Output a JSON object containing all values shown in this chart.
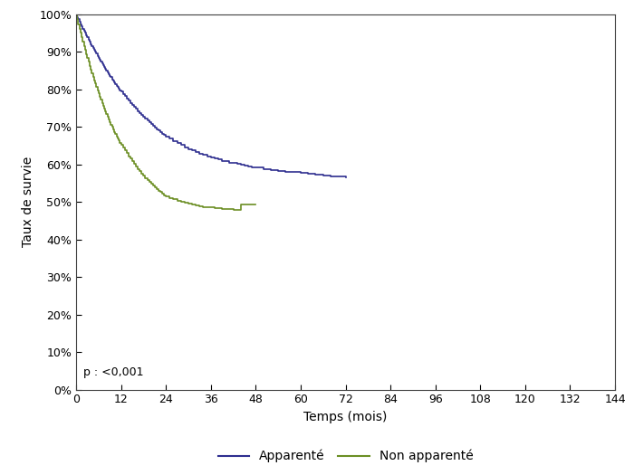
{
  "title": "",
  "xlabel": "Temps (mois)",
  "ylabel": "Taux de survie",
  "xlim": [
    0,
    144
  ],
  "ylim": [
    0,
    1.0
  ],
  "xticks": [
    0,
    12,
    24,
    36,
    48,
    60,
    72,
    84,
    96,
    108,
    120,
    132,
    144
  ],
  "yticks": [
    0.0,
    0.1,
    0.2,
    0.3,
    0.4,
    0.5,
    0.6,
    0.7,
    0.8,
    0.9,
    1.0
  ],
  "pvalue_text": "p : <0,001",
  "legend_labels": [
    "Apparenté",
    "Non apparenté"
  ],
  "color_apparente": "#2e2e8f",
  "color_non_apparente": "#6b8e23",
  "apparente_times": [
    0,
    0.3,
    0.6,
    0.9,
    1.2,
    1.5,
    1.8,
    2.1,
    2.4,
    2.7,
    3.0,
    3.3,
    3.6,
    3.9,
    4.2,
    4.5,
    4.8,
    5.1,
    5.4,
    5.7,
    6.0,
    6.3,
    6.6,
    6.9,
    7.2,
    7.5,
    7.8,
    8.1,
    8.4,
    8.7,
    9.0,
    9.3,
    9.6,
    9.9,
    10.2,
    10.5,
    10.8,
    11.1,
    11.4,
    11.7,
    12.0,
    12.5,
    13.0,
    13.5,
    14.0,
    14.5,
    15.0,
    15.5,
    16.0,
    16.5,
    17.0,
    17.5,
    18.0,
    18.5,
    19.0,
    19.5,
    20.0,
    20.5,
    21.0,
    21.5,
    22.0,
    22.5,
    23.0,
    23.5,
    24.0,
    25.0,
    26.0,
    27.0,
    28.0,
    29.0,
    30.0,
    31.0,
    32.0,
    33.0,
    34.0,
    35.0,
    36.0,
    37.0,
    38.0,
    39.0,
    40.0,
    41.0,
    42.0,
    43.0,
    44.0,
    45.0,
    46.0,
    47.0,
    48.0,
    50.0,
    52.0,
    54.0,
    56.0,
    58.0,
    60.0,
    62.0,
    64.0,
    66.0,
    68.0,
    70.0,
    72.0
  ],
  "apparente_surv": [
    1.0,
    0.993,
    0.987,
    0.98,
    0.974,
    0.968,
    0.962,
    0.956,
    0.95,
    0.944,
    0.938,
    0.933,
    0.927,
    0.921,
    0.916,
    0.911,
    0.905,
    0.9,
    0.895,
    0.889,
    0.884,
    0.879,
    0.874,
    0.869,
    0.864,
    0.859,
    0.855,
    0.85,
    0.845,
    0.841,
    0.836,
    0.832,
    0.827,
    0.823,
    0.818,
    0.814,
    0.81,
    0.806,
    0.802,
    0.798,
    0.794,
    0.788,
    0.782,
    0.776,
    0.77,
    0.764,
    0.759,
    0.753,
    0.748,
    0.742,
    0.737,
    0.732,
    0.727,
    0.722,
    0.717,
    0.712,
    0.707,
    0.703,
    0.698,
    0.694,
    0.69,
    0.686,
    0.682,
    0.678,
    0.674,
    0.668,
    0.662,
    0.656,
    0.651,
    0.646,
    0.641,
    0.637,
    0.633,
    0.629,
    0.625,
    0.622,
    0.619,
    0.616,
    0.613,
    0.61,
    0.608,
    0.605,
    0.603,
    0.601,
    0.599,
    0.597,
    0.595,
    0.593,
    0.591,
    0.588,
    0.585,
    0.583,
    0.581,
    0.579,
    0.577,
    0.575,
    0.573,
    0.571,
    0.569,
    0.567,
    0.565
  ],
  "non_apparente_times": [
    0,
    0.3,
    0.6,
    0.9,
    1.2,
    1.5,
    1.8,
    2.1,
    2.4,
    2.7,
    3.0,
    3.3,
    3.6,
    3.9,
    4.2,
    4.5,
    4.8,
    5.1,
    5.4,
    5.7,
    6.0,
    6.3,
    6.6,
    6.9,
    7.2,
    7.5,
    7.8,
    8.1,
    8.4,
    8.7,
    9.0,
    9.3,
    9.6,
    9.9,
    10.2,
    10.5,
    10.8,
    11.1,
    11.4,
    11.7,
    12.0,
    12.5,
    13.0,
    13.5,
    14.0,
    14.5,
    15.0,
    15.5,
    16.0,
    16.5,
    17.0,
    17.5,
    18.0,
    18.5,
    19.0,
    19.5,
    20.0,
    20.5,
    21.0,
    21.5,
    22.0,
    22.5,
    23.0,
    23.5,
    24.0,
    25.0,
    26.0,
    27.0,
    28.0,
    29.0,
    30.0,
    31.0,
    32.0,
    33.0,
    34.0,
    35.0,
    36.0,
    37.0,
    38.0,
    39.0,
    40.0,
    41.0,
    42.0,
    43.0,
    44.0,
    45.0,
    46.0,
    47.0,
    48.0
  ],
  "non_apparente_surv": [
    1.0,
    0.987,
    0.974,
    0.962,
    0.95,
    0.938,
    0.927,
    0.916,
    0.905,
    0.894,
    0.884,
    0.873,
    0.863,
    0.853,
    0.843,
    0.834,
    0.824,
    0.815,
    0.806,
    0.797,
    0.789,
    0.78,
    0.772,
    0.764,
    0.756,
    0.749,
    0.741,
    0.734,
    0.727,
    0.72,
    0.713,
    0.706,
    0.7,
    0.694,
    0.687,
    0.681,
    0.675,
    0.669,
    0.664,
    0.658,
    0.653,
    0.645,
    0.637,
    0.63,
    0.622,
    0.615,
    0.608,
    0.601,
    0.594,
    0.588,
    0.582,
    0.576,
    0.57,
    0.564,
    0.559,
    0.554,
    0.548,
    0.543,
    0.538,
    0.534,
    0.53,
    0.526,
    0.522,
    0.518,
    0.514,
    0.51,
    0.507,
    0.503,
    0.5,
    0.497,
    0.495,
    0.493,
    0.491,
    0.489,
    0.487,
    0.486,
    0.485,
    0.484,
    0.483,
    0.482,
    0.481,
    0.48,
    0.479,
    0.478,
    0.492,
    0.492,
    0.492,
    0.492,
    0.492
  ]
}
